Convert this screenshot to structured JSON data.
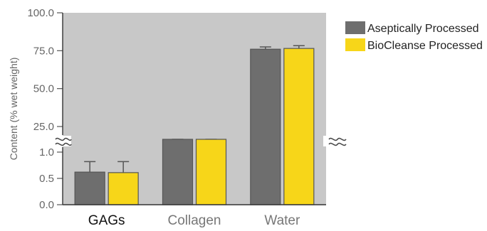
{
  "chart_data": {
    "type": "bar",
    "ylabel": "Content (% wet weight)",
    "categories": [
      "GAGs",
      "Collagen",
      "Water"
    ],
    "category_label_colors": [
      "#111111",
      "#777777",
      "#777777"
    ],
    "y_axis": {
      "broken": true,
      "lower_segment": {
        "range": [
          0.0,
          1.0
        ],
        "ticks": [
          "0.0",
          "0.5",
          "1.0"
        ]
      },
      "upper_segment": {
        "range": [
          25.0,
          100.0
        ],
        "ticks": [
          "25.0",
          "50.0",
          "75.0",
          "100.0"
        ]
      }
    },
    "series": [
      {
        "name": "Aseptically Processed",
        "color": "#6e6e6e",
        "values": [
          0.62,
          23.0,
          76.0
        ],
        "errors": [
          0.2,
          1.2,
          1.5
        ]
      },
      {
        "name": "BioCleanse Processed",
        "color": "#f7d619",
        "values": [
          0.61,
          22.7,
          76.5
        ],
        "errors": [
          0.21,
          2.2,
          1.8
        ]
      }
    ],
    "background_color": "#c8c8c8",
    "legend": "right",
    "grid": false
  }
}
